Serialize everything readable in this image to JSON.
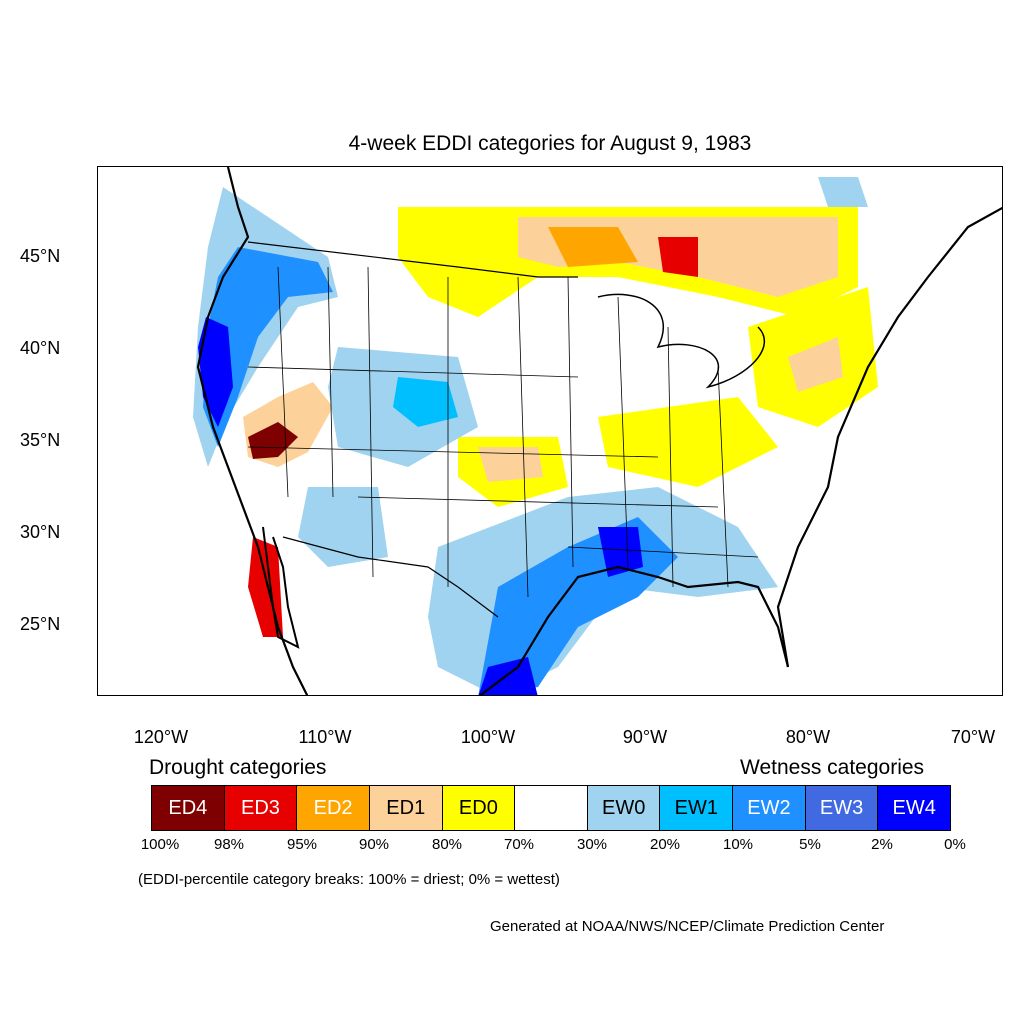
{
  "title": "4-week EDDI categories for August 9, 1983",
  "colors": {
    "ED4": "#7f0000",
    "ED3": "#e60000",
    "ED2": "#ffa500",
    "ED1": "#fdd29a",
    "ED0": "#ffff00",
    "neutral": "#ffffff",
    "EW0": "#9fd3f0",
    "EW1": "#00bfff",
    "EW2": "#1e90ff",
    "EW3": "#4169e1",
    "EW4": "#0000ff"
  },
  "lat_labels": [
    "45°N",
    "40°N",
    "35°N",
    "30°N",
    "25°N"
  ],
  "lon_labels": [
    "120°W",
    "110°W",
    "100°W",
    "90°W",
    "80°W",
    "70°W"
  ],
  "legend": {
    "drought_heading": "Drought categories",
    "wetness_heading": "Wetness categories",
    "categories": [
      "ED4",
      "ED3",
      "ED2",
      "ED1",
      "ED0",
      "",
      "EW0",
      "EW1",
      "EW2",
      "EW3",
      "EW4"
    ],
    "breaks": [
      "100%",
      "98%",
      "95%",
      "90%",
      "80%",
      "70%",
      "30%",
      "20%",
      "10%",
      "5%",
      "2%",
      "0%"
    ]
  },
  "note": "(EDDI-percentile category breaks: 100% = driest; 0% = wettest)",
  "credit": "Generated at NOAA/NWS/NCEP/Climate Prediction Center"
}
